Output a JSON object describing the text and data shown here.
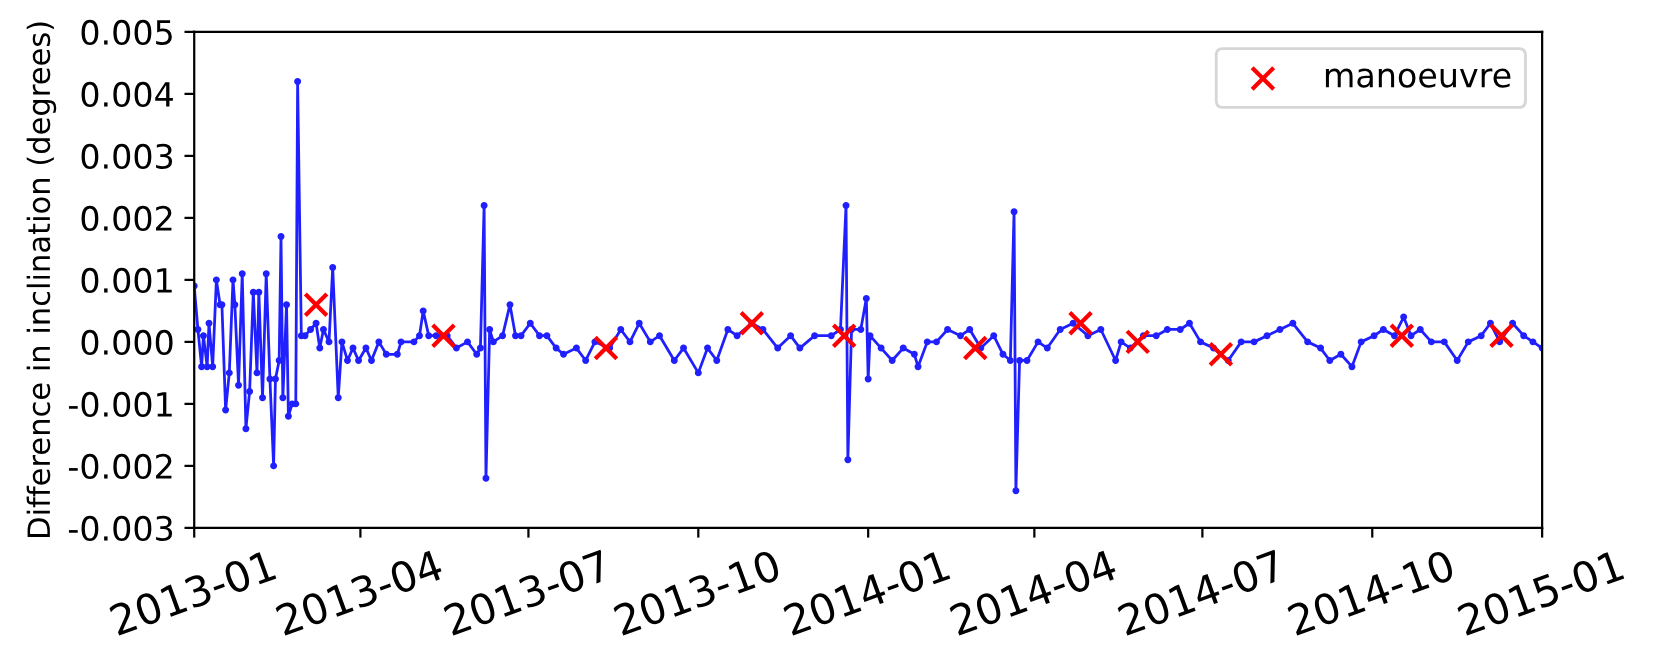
{
  "chart_data": {
    "type": "line",
    "ylabel": "Difference in inclination (degrees)",
    "xlim": [
      "2013-01",
      "2015-01"
    ],
    "xticks": [
      "2013-01",
      "2013-04",
      "2013-07",
      "2013-10",
      "2014-01",
      "2014-04",
      "2014-07",
      "2014-10",
      "2015-01"
    ],
    "ylim": [
      -0.003,
      0.005
    ],
    "yticks": [
      -0.003,
      -0.002,
      -0.001,
      {
        "value": 0,
        "label": "0.000"
      },
      0.001,
      0.002,
      0.003,
      0.004,
      0.005
    ],
    "grid": false,
    "legend": "top right",
    "series": [
      {
        "color": "#2020ff",
        "marker": "circle",
        "line_style": "solid",
        "x": [
          "2013-01-01",
          "2013-01-03",
          "2013-01-05",
          "2013-01-06",
          "2013-01-08",
          "2013-01-09",
          "2013-01-11",
          "2013-01-13",
          "2013-01-15",
          "2013-01-16",
          "2013-01-18",
          "2013-01-20",
          "2013-01-22",
          "2013-01-23",
          "2013-01-25",
          "2013-01-27",
          "2013-01-29",
          "2013-01-31",
          "2013-02-02",
          "2013-02-04",
          "2013-02-05",
          "2013-02-07",
          "2013-02-09",
          "2013-02-11",
          "2013-02-13",
          "2013-02-14",
          "2013-02-16",
          "2013-02-17",
          "2013-02-18",
          "2013-02-20",
          "2013-02-21",
          "2013-02-23",
          "2013-02-25",
          "2013-02-26",
          "2013-02-28",
          "2013-03-02",
          "2013-03-05",
          "2013-03-08",
          "2013-03-10",
          "2013-03-12",
          "2013-03-15",
          "2013-03-17",
          "2013-03-20",
          "2013-03-22",
          "2013-03-25",
          "2013-03-28",
          "2013-03-31",
          "2013-04-04",
          "2013-04-07",
          "2013-04-11",
          "2013-04-15",
          "2013-04-21",
          "2013-04-23",
          "2013-04-30",
          "2013-05-03",
          "2013-05-05",
          "2013-05-08",
          "2013-05-12",
          "2013-05-18",
          "2013-05-23",
          "2013-05-29",
          "2013-06-03",
          "2013-06-05",
          "2013-06-07",
          "2013-06-08",
          "2013-06-10",
          "2013-06-12",
          "2013-06-17",
          "2013-06-21",
          "2013-06-24",
          "2013-06-27",
          "2013-07-02",
          "2013-07-07",
          "2013-07-11",
          "2013-07-16",
          "2013-07-20",
          "2013-07-27",
          "2013-08-01",
          "2013-08-06",
          "2013-08-14",
          "2013-08-20",
          "2013-08-25",
          "2013-08-30",
          "2013-09-05",
          "2013-09-10",
          "2013-09-18",
          "2013-09-23",
          "2013-10-01",
          "2013-10-06",
          "2013-10-11",
          "2013-10-17",
          "2013-10-22",
          "2013-10-30",
          "2013-11-05",
          "2013-11-13",
          "2013-11-20",
          "2013-11-25",
          "2013-12-03",
          "2013-12-12",
          "2013-12-17",
          "2013-12-20",
          "2013-12-21",
          "2013-12-23",
          "2013-12-28",
          "2013-12-31",
          "2014-01-01",
          "2014-01-02",
          "2014-01-08",
          "2014-01-14",
          "2014-01-20",
          "2014-01-26",
          "2014-01-28",
          "2014-02-02",
          "2014-02-07",
          "2014-02-13",
          "2014-02-20",
          "2014-02-25",
          "2014-03-03",
          "2014-03-10",
          "2014-03-15",
          "2014-03-19",
          "2014-03-21",
          "2014-03-22",
          "2014-03-24",
          "2014-03-28",
          "2014-04-03",
          "2014-04-08",
          "2014-04-15",
          "2014-04-22",
          "2014-04-30",
          "2014-05-07",
          "2014-05-15",
          "2014-05-18",
          "2014-05-23",
          "2014-05-30",
          "2014-06-06",
          "2014-06-12",
          "2014-06-19",
          "2014-06-24",
          "2014-06-30",
          "2014-07-07",
          "2014-07-15",
          "2014-07-22",
          "2014-07-29",
          "2014-08-05",
          "2014-08-12",
          "2014-08-19",
          "2014-08-27",
          "2014-09-03",
          "2014-09-08",
          "2014-09-14",
          "2014-09-20",
          "2014-09-25",
          "2014-10-02",
          "2014-10-07",
          "2014-10-13",
          "2014-10-18",
          "2014-10-22",
          "2014-10-27",
          "2014-11-02",
          "2014-11-09",
          "2014-11-16",
          "2014-11-22",
          "2014-11-29",
          "2014-12-04",
          "2014-12-09",
          "2014-12-16",
          "2014-12-22",
          "2014-12-27",
          "2015-01-01"
        ],
        "values": [
          0.0009,
          0.0002,
          -0.0004,
          0.0001,
          -0.0004,
          0.0003,
          -0.0004,
          0.001,
          0.0006,
          0.0006,
          -0.0011,
          -0.0005,
          0.001,
          0.0006,
          -0.0007,
          0.0011,
          -0.0014,
          -0.0008,
          0.0008,
          -0.0005,
          0.0008,
          -0.0009,
          0.0011,
          -0.0006,
          -0.002,
          -0.0006,
          -0.0003,
          0.0017,
          -0.0009,
          0.0006,
          -0.0012,
          -0.001,
          -0.001,
          0.0042,
          0.0001,
          0.0001,
          0.0002,
          0.0003,
          -0.0001,
          0.0002,
          0.0,
          0.0012,
          -0.0009,
          0.0,
          -0.0003,
          -0.0001,
          -0.0003,
          -0.0001,
          -0.0003,
          0.0,
          -0.0002,
          -0.0002,
          0.0,
          0.0,
          0.0001,
          0.0005,
          0.0001,
          0.0001,
          0.0001,
          -0.0001,
          0.0,
          -0.0002,
          -0.0001,
          0.0022,
          -0.0022,
          0.0002,
          0.0,
          0.0001,
          0.0006,
          0.0001,
          0.0001,
          0.0003,
          0.0001,
          0.0001,
          -0.0001,
          -0.0002,
          -0.0001,
          -0.0003,
          0.0,
          -0.0001,
          0.0002,
          0.0,
          0.0003,
          0.0,
          0.0001,
          -0.0003,
          -0.0001,
          -0.0005,
          -0.0001,
          -0.0003,
          0.0002,
          0.0001,
          0.0003,
          0.0002,
          -0.0001,
          0.0001,
          -0.0001,
          0.0001,
          0.0001,
          0.0002,
          0.0022,
          -0.0019,
          0.0002,
          0.0002,
          0.0007,
          -0.0006,
          0.0001,
          -0.0001,
          -0.0003,
          -0.0001,
          -0.0002,
          -0.0004,
          0.0,
          0.0,
          0.0002,
          0.0001,
          0.0002,
          -0.0001,
          0.0001,
          -0.0002,
          -0.0003,
          0.0021,
          -0.0024,
          -0.0003,
          -0.0003,
          0.0,
          -0.0001,
          0.0002,
          0.0003,
          0.0001,
          0.0002,
          -0.0003,
          0.0,
          -0.0001,
          0.0001,
          0.0001,
          0.0002,
          0.0002,
          0.0003,
          0.0,
          -0.0001,
          -0.0003,
          0.0,
          0.0,
          0.0001,
          0.0002,
          0.0003,
          0.0,
          -0.0001,
          -0.0003,
          -0.0002,
          -0.0004,
          0.0,
          0.0001,
          0.0002,
          0.0001,
          0.0004,
          0.0001,
          0.0002,
          0.0,
          0.0,
          -0.0003,
          0.0,
          0.0001,
          0.0003,
          0.0,
          0.0003,
          0.0001,
          0.0,
          -0.0001
        ]
      },
      {
        "type": "scatter",
        "name": "manoeuvre",
        "color": "#ff0000",
        "marker": "cross",
        "x": [
          "2013-03-08",
          "2013-05-16",
          "2013-08-12",
          "2013-10-30",
          "2013-12-19",
          "2014-02-28",
          "2014-04-26",
          "2014-05-27",
          "2014-07-11",
          "2014-10-17",
          "2014-12-10"
        ],
        "values": [
          0.0006,
          0.0001,
          -0.0001,
          0.0003,
          0.0001,
          -0.0001,
          0.0003,
          0.0,
          -0.0002,
          0.0001,
          0.0001
        ]
      }
    ]
  }
}
